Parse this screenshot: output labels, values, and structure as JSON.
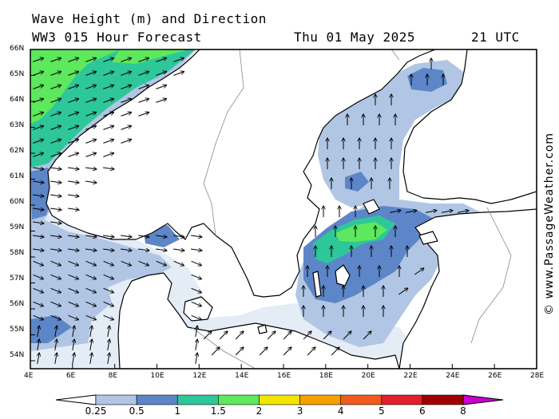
{
  "header": {
    "title": "Wave Height (m) and Direction",
    "subtitle": "WW3 015 Hour Forecast",
    "date": "Thu 01 May 2025",
    "time": "21 UTC"
  },
  "credit": "© www.PassageWeather.com",
  "axes": {
    "lat_labels": [
      "66N",
      "65N",
      "64N",
      "63N",
      "62N",
      "61N",
      "60N",
      "59N",
      "58N",
      "57N",
      "56N",
      "55N",
      "54N"
    ],
    "lon_labels": [
      "4E",
      "6E",
      "8E",
      "10E",
      "12E",
      "14E",
      "16E",
      "18E",
      "20E",
      "22E",
      "24E",
      "26E",
      "28E"
    ]
  },
  "legend": {
    "labels": [
      "0.25",
      "0.5",
      "1",
      "1.5",
      "2",
      "3",
      "4",
      "5",
      "6",
      "8"
    ],
    "colors": [
      "#e4ecf6",
      "#b0c6e4",
      "#5d86c8",
      "#2ec79a",
      "#5de85d",
      "#f2e600",
      "#f5a100",
      "#f25a1e",
      "#e41e2e",
      "#a00000",
      "#cc00cc"
    ]
  },
  "map_colors": {
    "land": "#ffffff",
    "sea_calm": "#ffffff",
    "band_025": "#e4ecf6",
    "band_05": "#b0c6e4",
    "band_1": "#5d86c8",
    "band_15": "#2ec79a",
    "band_2": "#5de85d",
    "coast": "#000000",
    "arrow": "#000000"
  }
}
